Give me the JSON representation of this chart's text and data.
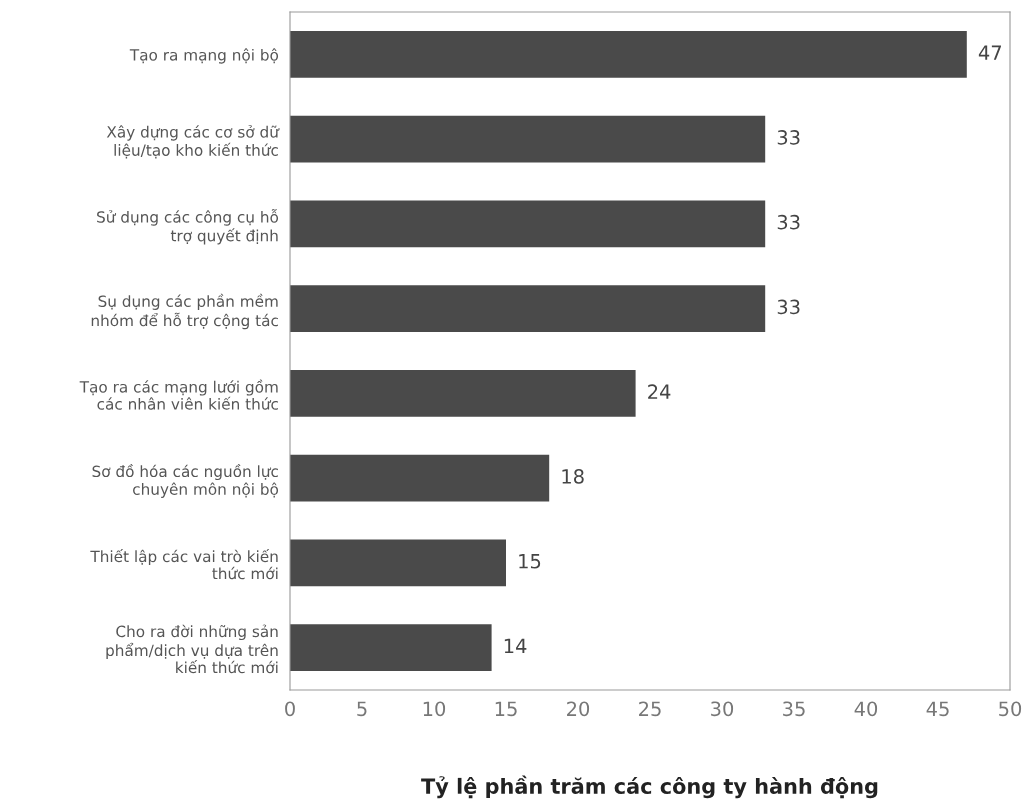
{
  "chart_data": {
    "type": "bar",
    "orientation": "horizontal",
    "xlabel": "Tỷ lệ phần trăm các công ty hành động",
    "categories": [
      "Tạo ra mạng nội bộ",
      "Xây dựng các cơ sở dữ\nliệu/tạo kho kiến thức",
      "Sử dụng các công cụ hỗ\ntrợ quyết định",
      "Sụ dụng các phần mềm\nnhóm để hỗ trợ cộng tác",
      "Tạo ra các mạng lưới gồm\ncác nhân viên kiến thức",
      "Sơ đồ hóa các nguồn lực\nchuyên môn nội bộ",
      "Thiết lập các vai trò kiến\nthức mới",
      "Cho ra đời những sản\nphẩm/dịch vụ dựa trên\nkiến thức mới"
    ],
    "values": [
      47,
      33,
      33,
      33,
      24,
      18,
      15,
      14
    ],
    "color": "#4a4a4a",
    "data_labels": true,
    "xlim": [
      0,
      50
    ],
    "xticks": [
      0,
      5,
      10,
      15,
      20,
      25,
      30,
      35,
      40,
      45,
      50
    ],
    "grid": false
  }
}
